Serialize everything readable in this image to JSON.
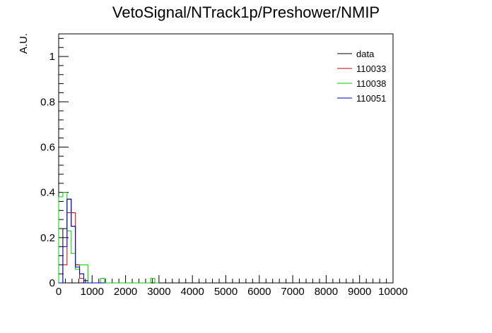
{
  "chart_data": {
    "type": "histogram",
    "title": "VetoSignal/NTrack1p/Preshower/NMIP",
    "xlabel": "",
    "ylabel": "A.U.",
    "xlim": [
      0,
      10000
    ],
    "ylim": [
      0,
      1.1
    ],
    "bin_width": 125,
    "x_ticks": [
      0,
      1000,
      2000,
      3000,
      4000,
      5000,
      6000,
      7000,
      8000,
      9000,
      10000
    ],
    "x_tick_labels": [
      "0",
      "1000",
      "2000",
      "3000",
      "4000",
      "5000",
      "6000",
      "7000",
      "8000",
      "9000",
      "10000"
    ],
    "y_ticks": [
      0,
      0.2,
      0.4,
      0.6,
      0.8,
      1
    ],
    "y_tick_labels": [
      "0",
      "0.2",
      "0.4",
      "0.6",
      "0.8",
      "1"
    ],
    "grid": false,
    "legend_position": "top-right",
    "series": [
      {
        "name": "data",
        "color": "#000000",
        "values": [
          0.0,
          0.24,
          0.37,
          0.25,
          0.08,
          0.04,
          0.01,
          0.0
        ]
      },
      {
        "name": "110033",
        "color": "#cc0000",
        "values": [
          0.0,
          0.08,
          0.31,
          0.31,
          0.08,
          0.02,
          0.0,
          0.0
        ]
      },
      {
        "name": "110038",
        "color": "#00cc00",
        "values": [
          0.38,
          0.4,
          0.23,
          0.13,
          0.06,
          0.08,
          0.08,
          0.0,
          0.0,
          0.0,
          0.02,
          0.0,
          0.0,
          0.0,
          0.0,
          0.0,
          0.0,
          0.0,
          0.0,
          0.0,
          0.0,
          0.0,
          0.02,
          0.0
        ]
      },
      {
        "name": "110051",
        "color": "#0000cc",
        "values": [
          0.0,
          0.16,
          0.37,
          0.25,
          0.07,
          0.04,
          0.0,
          0.0,
          0.0,
          0.0,
          0.0
        ]
      }
    ]
  }
}
